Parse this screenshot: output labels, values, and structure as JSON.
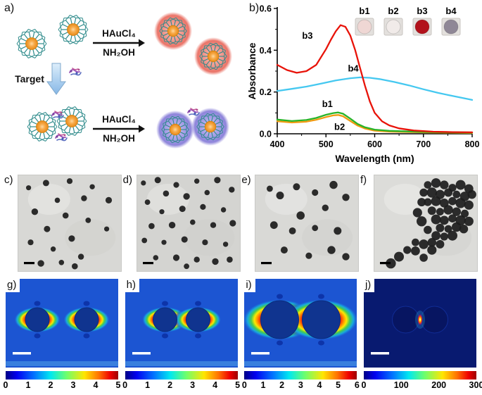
{
  "panels": {
    "a": {
      "label": "a)",
      "reagent1": "HAuCl₄",
      "reagent2": "NH₂OH",
      "target_label": "Target"
    },
    "b": {
      "label": "b)"
    },
    "tem": [
      {
        "label": "c)",
        "r": 4.2,
        "bg": "#d8d8d5",
        "dots": [
          [
            10,
            13
          ],
          [
            27,
            8
          ],
          [
            50,
            6
          ],
          [
            72,
            12
          ],
          [
            88,
            26
          ],
          [
            64,
            24
          ],
          [
            38,
            26
          ],
          [
            16,
            38
          ],
          [
            46,
            42
          ],
          [
            68,
            47
          ],
          [
            86,
            56
          ],
          [
            28,
            56
          ],
          [
            12,
            70
          ],
          [
            34,
            77
          ],
          [
            52,
            66
          ],
          [
            61,
            85
          ],
          [
            42,
            91
          ],
          [
            22,
            92
          ],
          [
            55,
            95
          ]
        ]
      },
      {
        "label": "d)",
        "r": 4.2,
        "bg": "#d4d4d1",
        "dots": [
          [
            6,
            8
          ],
          [
            20,
            5
          ],
          [
            38,
            10
          ],
          [
            58,
            6
          ],
          [
            78,
            5
          ],
          [
            92,
            15
          ],
          [
            68,
            18
          ],
          [
            48,
            22
          ],
          [
            28,
            19
          ],
          [
            10,
            28
          ],
          [
            24,
            38
          ],
          [
            44,
            35
          ],
          [
            64,
            33
          ],
          [
            84,
            36
          ],
          [
            93,
            50
          ],
          [
            74,
            52
          ],
          [
            54,
            49
          ],
          [
            34,
            52
          ],
          [
            14,
            53
          ],
          [
            7,
            68
          ],
          [
            26,
            70
          ],
          [
            46,
            67
          ],
          [
            66,
            70
          ],
          [
            86,
            72
          ],
          [
            38,
            86
          ],
          [
            58,
            88
          ],
          [
            18,
            86
          ],
          [
            76,
            90
          ],
          [
            90,
            88
          ],
          [
            48,
            95
          ]
        ]
      },
      {
        "label": "e)",
        "r": 5.2,
        "bg": "#d9d9d6",
        "dots": [
          [
            14,
            14
          ],
          [
            24,
            21
          ],
          [
            40,
            12
          ],
          [
            58,
            18
          ],
          [
            76,
            10
          ],
          [
            88,
            23
          ],
          [
            68,
            34
          ],
          [
            44,
            42
          ],
          [
            18,
            52
          ],
          [
            36,
            58
          ],
          [
            58,
            55
          ],
          [
            80,
            58
          ],
          [
            28,
            78
          ],
          [
            52,
            84
          ],
          [
            74,
            78
          ],
          [
            88,
            85
          ]
        ]
      },
      {
        "label": "f)",
        "r": 6.4,
        "bg": "#dcdcd9",
        "dots": [
          [
            52,
            10
          ],
          [
            60,
            8
          ],
          [
            68,
            10
          ],
          [
            76,
            13
          ],
          [
            84,
            10
          ],
          [
            92,
            14
          ],
          [
            48,
            18
          ],
          [
            56,
            18
          ],
          [
            64,
            20
          ],
          [
            72,
            18
          ],
          [
            80,
            20
          ],
          [
            88,
            22
          ],
          [
            95,
            20
          ],
          [
            52,
            28
          ],
          [
            60,
            27
          ],
          [
            68,
            29
          ],
          [
            76,
            27
          ],
          [
            84,
            29
          ],
          [
            92,
            31
          ],
          [
            56,
            37
          ],
          [
            64,
            38
          ],
          [
            72,
            36
          ],
          [
            80,
            38
          ],
          [
            88,
            40
          ],
          [
            60,
            46
          ],
          [
            68,
            47
          ],
          [
            76,
            45
          ],
          [
            84,
            47
          ],
          [
            92,
            48
          ],
          [
            64,
            55
          ],
          [
            72,
            56
          ],
          [
            80,
            54
          ],
          [
            87,
            56
          ],
          [
            68,
            64
          ],
          [
            76,
            63
          ],
          [
            60,
            63
          ],
          [
            52,
            57
          ],
          [
            46,
            48
          ],
          [
            42,
            39
          ],
          [
            46,
            28
          ],
          [
            40,
            70
          ],
          [
            48,
            72
          ],
          [
            56,
            70
          ],
          [
            32,
            78
          ],
          [
            24,
            85
          ],
          [
            40,
            79
          ],
          [
            48,
            86
          ],
          [
            16,
            92
          ],
          [
            56,
            78
          ],
          [
            64,
            72
          ]
        ]
      }
    ],
    "sims": [
      {
        "label": "g)",
        "type": "dimer",
        "r": 17,
        "gap": 36,
        "colorbar_ticks": [
          "0",
          "1",
          "2",
          "3",
          "4",
          "5"
        ]
      },
      {
        "label": "h)",
        "type": "dimer",
        "r": 17,
        "gap": 13,
        "colorbar_ticks": [
          "0",
          "1",
          "2",
          "3",
          "4",
          "5"
        ]
      },
      {
        "label": "i)",
        "type": "dimer",
        "r": 27,
        "gap": 5,
        "colorbar_ticks": [
          "0",
          "1",
          "2",
          "3",
          "4",
          "5",
          "6"
        ]
      },
      {
        "label": "j)",
        "type": "hotspot",
        "r": 19,
        "gap": 3,
        "colorbar_ticks": [
          "0",
          "100",
          "200",
          "300"
        ]
      }
    ]
  },
  "chart_data": {
    "type": "line",
    "title": "",
    "xlabel": "Wavelength (nm)",
    "ylabel": "Absorbance",
    "xlim": [
      400,
      800
    ],
    "ylim": [
      0,
      0.6
    ],
    "x_ticks": [
      400,
      500,
      600,
      700,
      800
    ],
    "y_ticks": [
      0.0,
      0.2,
      0.4,
      0.6
    ],
    "series": [
      {
        "name": "b4",
        "color": "#45c8f0",
        "x": [
          400,
          430,
          460,
          490,
          520,
          550,
          570,
          590,
          610,
          640,
          670,
          700,
          730,
          760,
          800
        ],
        "y": [
          0.205,
          0.215,
          0.226,
          0.24,
          0.255,
          0.266,
          0.27,
          0.268,
          0.262,
          0.248,
          0.232,
          0.213,
          0.196,
          0.181,
          0.162
        ]
      },
      {
        "name": "b2",
        "color": "#f09a10",
        "x": [
          400,
          430,
          460,
          480,
          500,
          515,
          525,
          535,
          550,
          565,
          580,
          600,
          630,
          670,
          720,
          800
        ],
        "y": [
          0.06,
          0.054,
          0.058,
          0.067,
          0.08,
          0.088,
          0.09,
          0.084,
          0.061,
          0.039,
          0.025,
          0.015,
          0.01,
          0.008,
          0.006,
          0.004
        ]
      },
      {
        "name": "b1",
        "color": "#28b428",
        "x": [
          400,
          430,
          460,
          480,
          500,
          515,
          525,
          535,
          550,
          565,
          580,
          600,
          630,
          670,
          720,
          800
        ],
        "y": [
          0.068,
          0.061,
          0.066,
          0.076,
          0.091,
          0.099,
          0.102,
          0.096,
          0.072,
          0.047,
          0.031,
          0.02,
          0.014,
          0.011,
          0.008,
          0.006
        ]
      },
      {
        "name": "b3",
        "color": "#e81309",
        "x": [
          400,
          420,
          440,
          460,
          480,
          500,
          510,
          520,
          530,
          540,
          550,
          560,
          570,
          580,
          590,
          600,
          615,
          630,
          650,
          680,
          720,
          760,
          800
        ],
        "y": [
          0.33,
          0.305,
          0.292,
          0.3,
          0.33,
          0.405,
          0.45,
          0.49,
          0.52,
          0.512,
          0.47,
          0.4,
          0.315,
          0.23,
          0.155,
          0.1,
          0.06,
          0.04,
          0.026,
          0.016,
          0.01,
          0.008,
          0.007
        ]
      }
    ],
    "annotations": [
      {
        "text": "b3",
        "x": 462,
        "y": 0.455
      },
      {
        "text": "b4",
        "x": 556,
        "y": 0.298
      },
      {
        "text": "b1",
        "x": 503,
        "y": 0.128
      },
      {
        "text": "b2",
        "x": 528,
        "y": 0.018
      }
    ],
    "inset": {
      "bg": "#e3e0dd",
      "items": [
        {
          "label": "b1",
          "circle": "#efd7d4"
        },
        {
          "label": "b2",
          "circle": "#f1ebe9"
        },
        {
          "label": "b3",
          "circle": "#b2121c"
        },
        {
          "label": "b4",
          "circle": "#8f8796"
        }
      ]
    }
  }
}
